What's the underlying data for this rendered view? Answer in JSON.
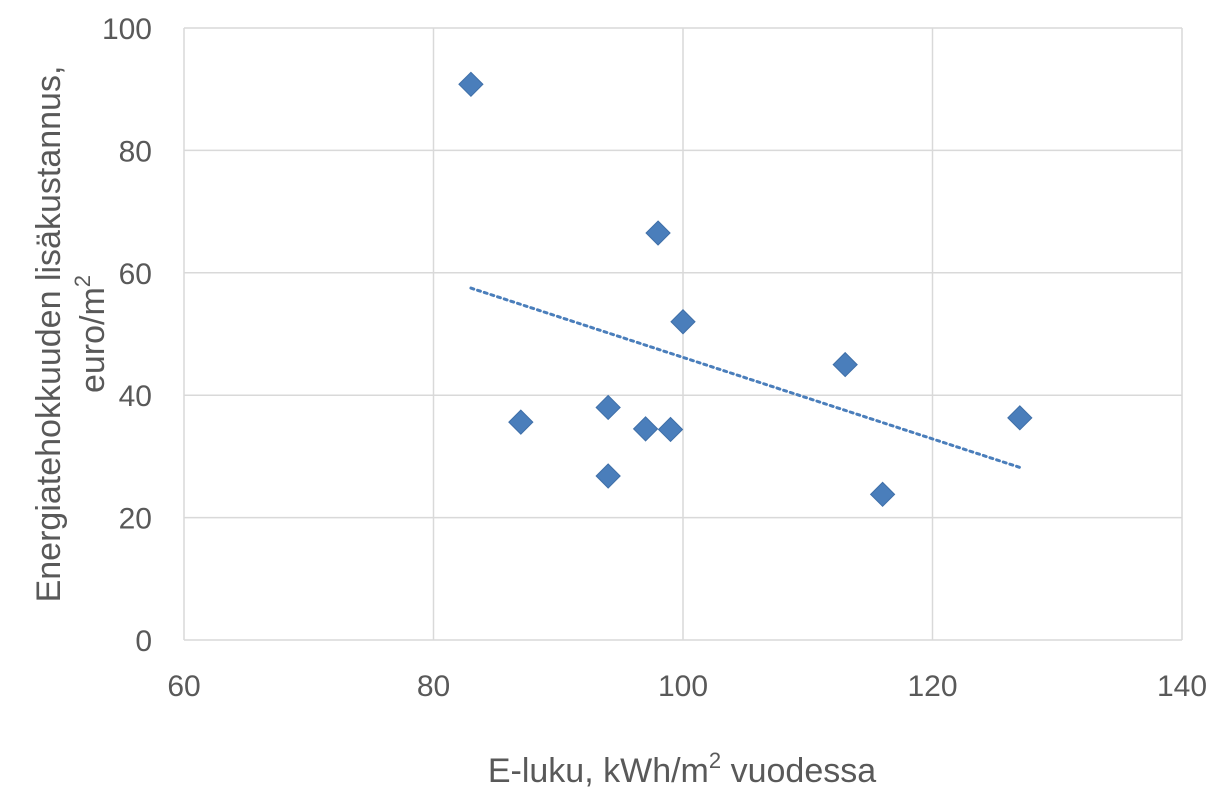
{
  "chart_data": {
    "type": "scatter",
    "xlabel": "E-luku, kWh/m2 vuodessa",
    "ylabel": "Energiatehokkuuden lisäkustannus, euro/m2",
    "xlim": [
      60,
      140
    ],
    "ylim": [
      0,
      100
    ],
    "x_ticks": [
      60,
      80,
      100,
      120,
      140
    ],
    "y_ticks": [
      0,
      20,
      40,
      60,
      80,
      100
    ],
    "grid": true,
    "marker": "diamond",
    "marker_color": "#4a7ebb",
    "trendline": {
      "type": "linear",
      "style": "dotted",
      "color": "#4a7ebb",
      "x_range": [
        83,
        127
      ],
      "y_range": [
        57.5,
        28.2
      ]
    },
    "series": [
      {
        "points": [
          {
            "x": 83,
            "y": 90.8
          },
          {
            "x": 87,
            "y": 35.6
          },
          {
            "x": 94,
            "y": 38.0
          },
          {
            "x": 94,
            "y": 26.8
          },
          {
            "x": 97,
            "y": 34.5
          },
          {
            "x": 98,
            "y": 66.5
          },
          {
            "x": 99,
            "y": 34.4
          },
          {
            "x": 100,
            "y": 52.0
          },
          {
            "x": 113,
            "y": 45.0
          },
          {
            "x": 116,
            "y": 23.8
          },
          {
            "x": 127,
            "y": 36.3
          }
        ]
      }
    ]
  },
  "labels": {
    "x_title_pre": "E-luku, kWh/m",
    "x_title_sup": "2",
    "x_title_post": " vuodessa",
    "y_title_line1": "Energiatehokkuuden lisäkustannus,",
    "y_title_line2_pre": "euro/m",
    "y_title_line2_sup": "2"
  }
}
